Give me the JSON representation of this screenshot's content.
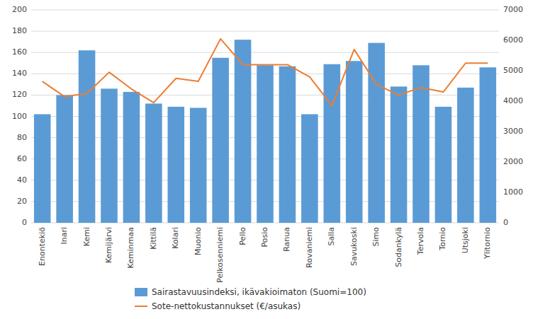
{
  "chart_data": {
    "type": "bar",
    "categories": [
      "Enontekiö",
      "Inari",
      "Kemi",
      "Kemijärvi",
      "Keminmaa",
      "Kittilä",
      "Kolari",
      "Muonio",
      "Pelkosenniemi",
      "Pello",
      "Posio",
      "Ranua",
      "Rovaniemi",
      "Salla",
      "Savukoski",
      "Simo",
      "Sodankylä",
      "Tervola",
      "Tornio",
      "Utsjoki",
      "Ylitornio"
    ],
    "series": [
      {
        "name": "Sairastavuusindeksi, ikävakioimaton (Suomi=100)",
        "type": "bar",
        "color": "#5B9BD5",
        "values": [
          102,
          120,
          162,
          126,
          123,
          112,
          109,
          108,
          155,
          172,
          148,
          147,
          102,
          149,
          152,
          169,
          128,
          148,
          109,
          127,
          146
        ]
      },
      {
        "name": "Sote-nettokustannukset (€/asukas)",
        "type": "line",
        "axis": "y2",
        "color": "#ED7D31",
        "values": [
          4650,
          4150,
          4250,
          4950,
          4400,
          3950,
          4750,
          4650,
          6050,
          5200,
          5200,
          5200,
          4800,
          3850,
          5700,
          4550,
          4200,
          4450,
          4300,
          5250,
          5250
        ]
      }
    ],
    "ylim": [
      0,
      200
    ],
    "yticks": [
      0,
      20,
      40,
      60,
      80,
      100,
      120,
      140,
      160,
      180,
      200
    ],
    "y2lim": [
      0,
      7000
    ],
    "y2ticks": [
      0,
      1000,
      2000,
      3000,
      4000,
      5000,
      6000,
      7000
    ],
    "grid": true,
    "legend": "bottom"
  }
}
